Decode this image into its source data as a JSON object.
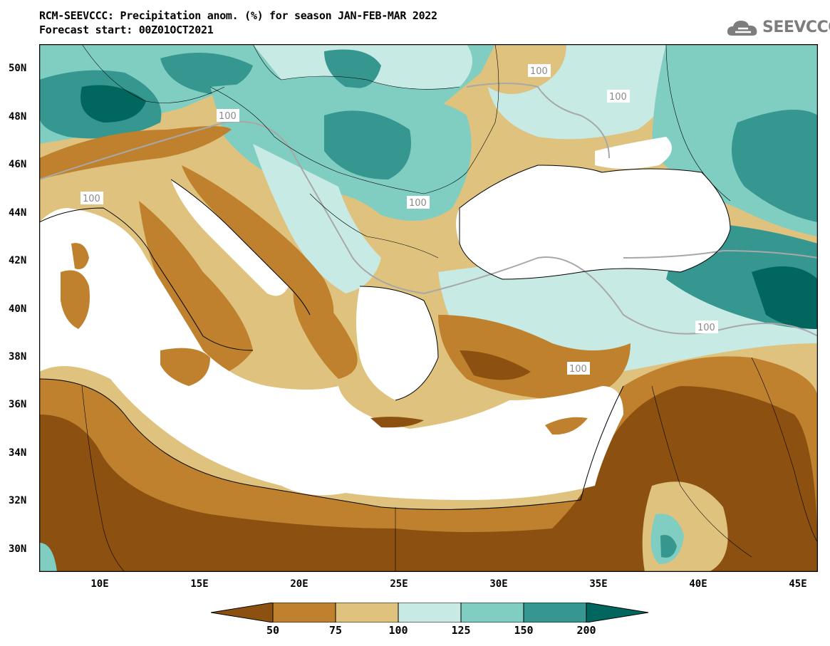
{
  "title": {
    "line1": "RCM-SEEVCCC: Precipitation anom. (%) for season JAN-FEB-MAR 2022",
    "line2": "Forecast start: 00Z01OCT2021"
  },
  "logo": {
    "text": "SEEVCCC",
    "icon": "cloud-icon"
  },
  "map": {
    "lat_ticks": [
      "50N",
      "48N",
      "46N",
      "44N",
      "42N",
      "40N",
      "38N",
      "36N",
      "34N",
      "32N",
      "30N"
    ],
    "lon_ticks": [
      "10E",
      "15E",
      "20E",
      "25E",
      "30E",
      "35E",
      "40E",
      "45E"
    ],
    "contour_label": "100",
    "ocean_color": "#ffffff"
  },
  "colorbar": {
    "labels": [
      "50",
      "75",
      "100",
      "125",
      "150",
      "200"
    ],
    "colors": [
      "#8c5010",
      "#bf812d",
      "#dfc27d",
      "#c7eae5",
      "#80cdc1",
      "#35978f",
      "#01665e"
    ]
  }
}
